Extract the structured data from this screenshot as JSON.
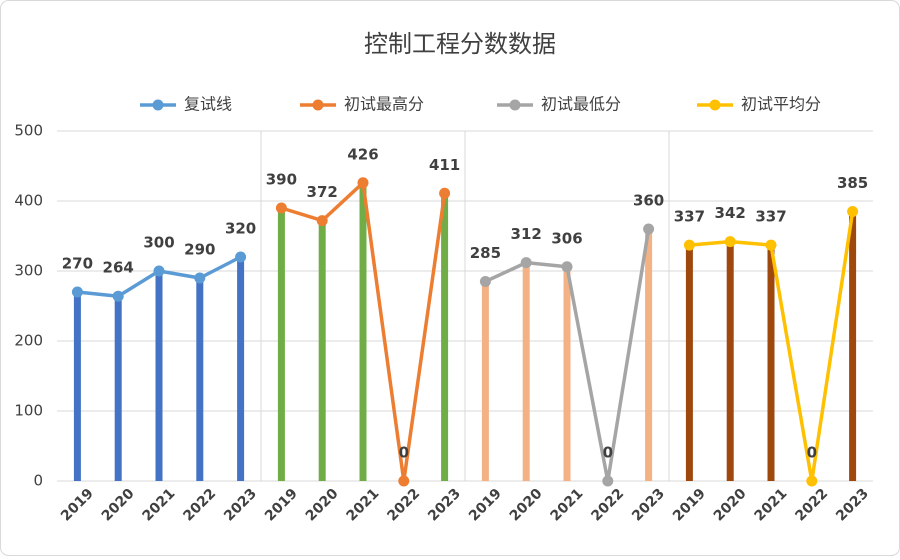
{
  "chart_data": {
    "type": "bar_line",
    "title": "控制工程分数数据",
    "categories": [
      "2019",
      "2020",
      "2021",
      "2022",
      "2023",
      "2019",
      "2020",
      "2021",
      "2022",
      "2023",
      "2019",
      "2020",
      "2021",
      "2022",
      "2023",
      "2019",
      "2020",
      "2021",
      "2022",
      "2023"
    ],
    "series": [
      {
        "name": "复试线",
        "color": "#5b9bd5",
        "bar_color": "#4472c4",
        "values": [
          270,
          264,
          300,
          290,
          320,
          null,
          null,
          null,
          null,
          null,
          null,
          null,
          null,
          null,
          null,
          null,
          null,
          null,
          null,
          null
        ]
      },
      {
        "name": "初试最高分",
        "color": "#ed7d31",
        "bar_color": "#70ad47",
        "values": [
          null,
          null,
          null,
          null,
          null,
          390,
          372,
          426,
          0,
          411,
          null,
          null,
          null,
          null,
          null,
          null,
          null,
          null,
          null,
          null
        ]
      },
      {
        "name": "初试最低分",
        "color": "#a5a5a5",
        "bar_color": "#f4b183",
        "values": [
          null,
          null,
          null,
          null,
          null,
          null,
          null,
          null,
          null,
          null,
          285,
          312,
          306,
          0,
          360,
          null,
          null,
          null,
          null,
          null
        ]
      },
      {
        "name": "初试平均分",
        "color": "#ffc000",
        "bar_color": "#9e480e",
        "values": [
          null,
          null,
          null,
          null,
          null,
          null,
          null,
          null,
          null,
          null,
          null,
          null,
          null,
          null,
          null,
          337,
          342,
          337,
          0,
          385
        ]
      }
    ],
    "ylim": [
      0,
      500
    ],
    "yticks": [
      0,
      100,
      200,
      300,
      400,
      500
    ],
    "grid": true,
    "legend": "top"
  }
}
